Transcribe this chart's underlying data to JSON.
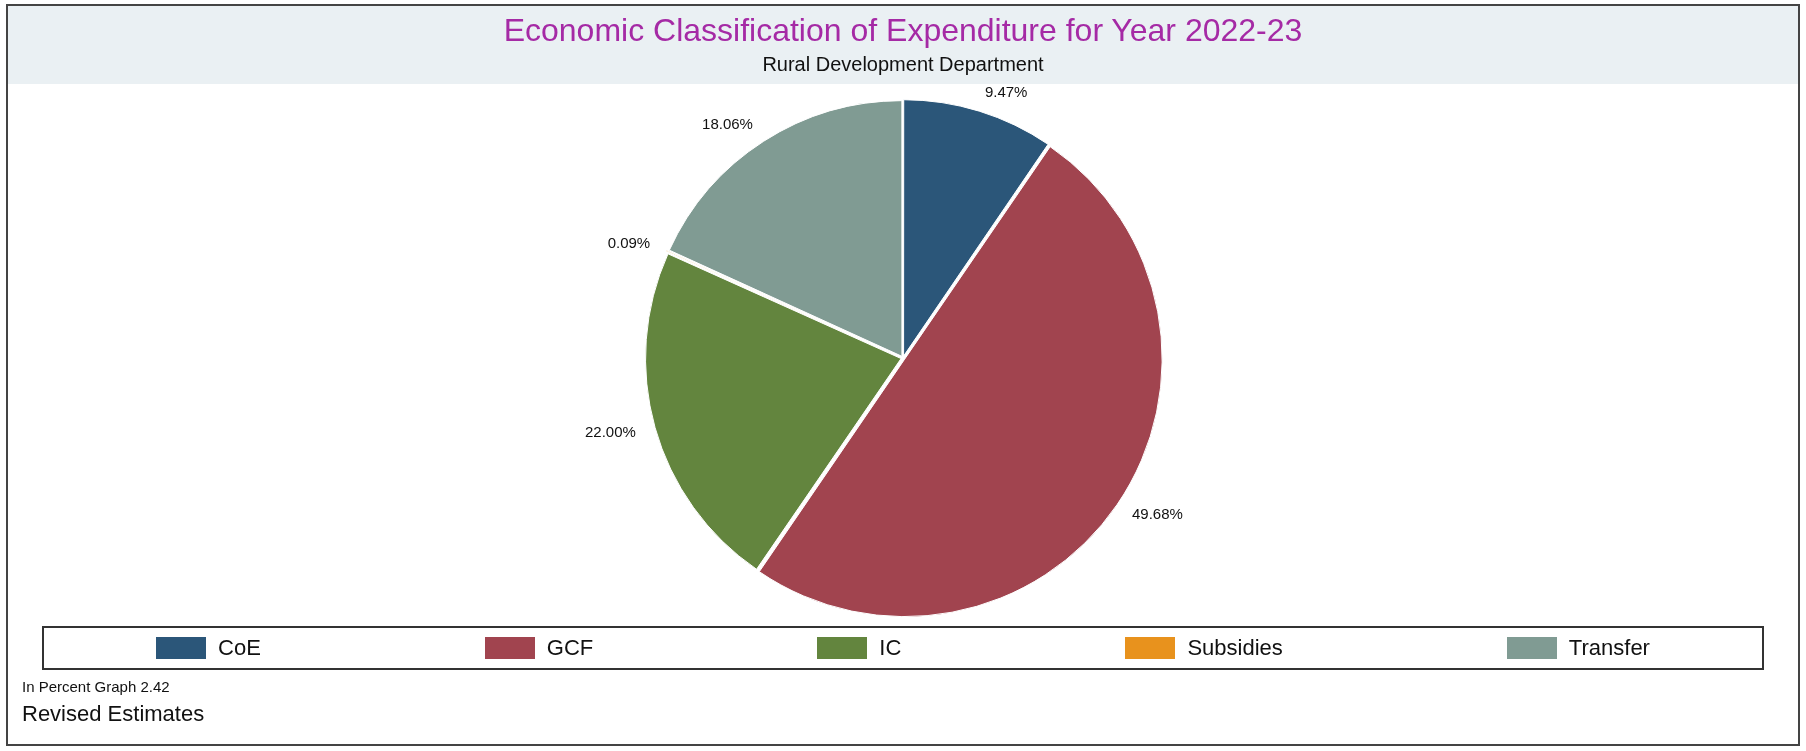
{
  "chart_data": {
    "type": "pie",
    "title": "Economic Classification of Expenditure for Year 2022-23",
    "subtitle": "Rural Development Department",
    "categories": [
      "CoE",
      "GCF",
      "IC",
      "Subsidies",
      "Transfer"
    ],
    "values": [
      9.47,
      49.68,
      22.0,
      0.09,
      18.06
    ],
    "colors": [
      "#2b5679",
      "#a1444f",
      "#63853e",
      "#e8921d",
      "#809b93"
    ],
    "value_labels": [
      "9.47%",
      "49.68%",
      "22.00%",
      "0.09%",
      "18.06%"
    ],
    "legend": "bottom",
    "annotations": [
      "In Percent Graph 2.42",
      "Revised Estimates"
    ]
  }
}
